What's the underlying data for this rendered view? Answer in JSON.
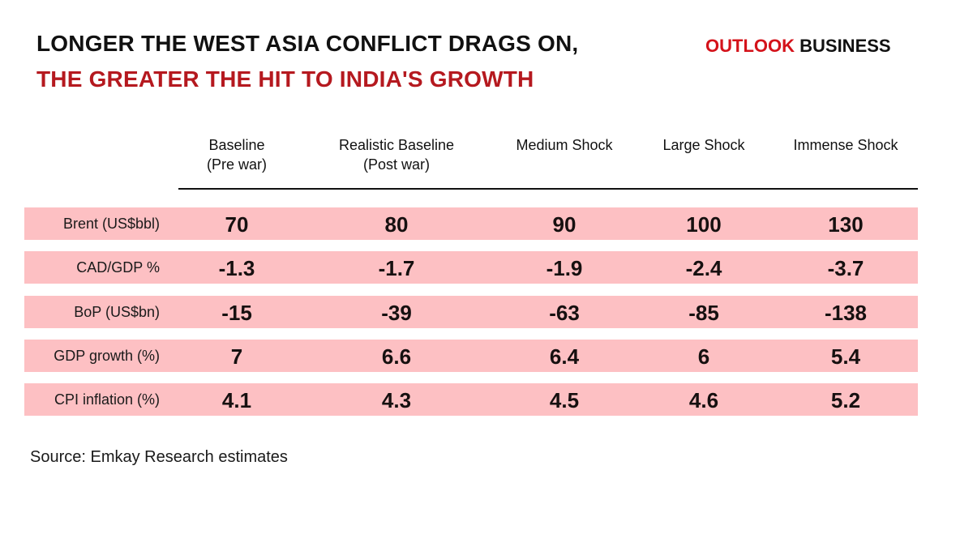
{
  "title": {
    "line1": "LONGER THE WEST ASIA CONFLICT DRAGS ON,",
    "line2": "THE GREATER THE HIT TO INDIA'S GROWTH"
  },
  "logo": {
    "part1": "OUTLOOK",
    "part2": "BUSINESS"
  },
  "colors": {
    "title_accent": "#b5191f",
    "logo_red": "#d4121a",
    "row_fill": "#fdc0c3",
    "text": "#111111"
  },
  "chart_data": {
    "type": "table",
    "title": "LONGER THE WEST ASIA CONFLICT DRAGS ON, THE GREATER THE HIT TO INDIA'S GROWTH",
    "columns": [
      {
        "line1": "Baseline",
        "line2": "(Pre war)"
      },
      {
        "line1": "Realistic Baseline",
        "line2": "(Post war)"
      },
      {
        "line1": "Medium Shock",
        "line2": ""
      },
      {
        "line1": "Large Shock",
        "line2": ""
      },
      {
        "line1": "Immense Shock",
        "line2": ""
      }
    ],
    "rows": [
      {
        "label": "Brent (US$bbl)",
        "values": [
          "70",
          "80",
          "90",
          "100",
          "130"
        ]
      },
      {
        "label": "CAD/GDP %",
        "values": [
          "-1.3",
          "-1.7",
          "-1.9",
          "-2.4",
          "-3.7"
        ]
      },
      {
        "label": "BoP (US$bn)",
        "values": [
          "-15",
          "-39",
          "-63",
          "-85",
          "-138"
        ]
      },
      {
        "label": "GDP growth (%)",
        "values": [
          "7",
          "6.6",
          "6.4",
          "6",
          "5.4"
        ]
      },
      {
        "label": "CPI inflation (%)",
        "values": [
          "4.1",
          "4.3",
          "4.5",
          "4.6",
          "5.2"
        ]
      }
    ],
    "source": "Source: Emkay Research estimates"
  }
}
